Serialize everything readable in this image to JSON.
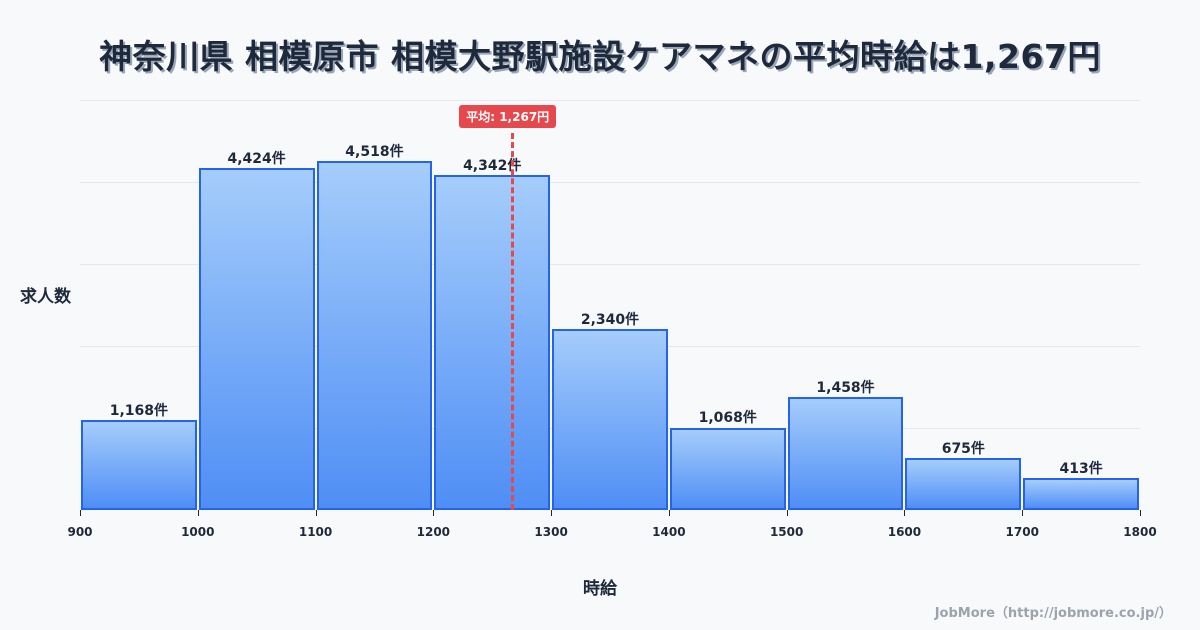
{
  "title": "神奈川県 相模原市 相模大野駅施設ケアマネの平均時給は1,267円",
  "ylabel": "求人数",
  "xlabel": "時給",
  "credit": "JobMore（http://jobmore.co.jp/）",
  "average": {
    "value": 1267,
    "label": "平均: 1,267円",
    "color": "#e5484d"
  },
  "colors": {
    "bar_border": "#2563eb",
    "bar_top": "#a5cdfb",
    "bar_bottom": "#4f8ef5",
    "background": "#f8f9fb"
  },
  "chart_data": {
    "type": "bar",
    "title": "神奈川県 相模原市 相模大野駅施設ケアマネの平均時給は1,267円",
    "xlabel": "時給",
    "ylabel": "求人数",
    "categories": [
      "900-1000",
      "1000-1100",
      "1100-1200",
      "1200-1300",
      "1300-1400",
      "1400-1500",
      "1500-1600",
      "1600-1700",
      "1700-1800"
    ],
    "bin_edges": [
      900,
      1000,
      1100,
      1200,
      1300,
      1400,
      1500,
      1600,
      1700,
      1800
    ],
    "values": [
      1168,
      4424,
      4518,
      4342,
      2340,
      1068,
      1458,
      675,
      413
    ],
    "value_labels": [
      "1,168件",
      "4,424件",
      "4,518件",
      "4,342件",
      "2,340件",
      "1,068件",
      "1,458件",
      "675件",
      "413件"
    ],
    "x_ticks": [
      "900",
      "1000",
      "1100",
      "1200",
      "1300",
      "1400",
      "1500",
      "1600",
      "1700",
      "1800"
    ],
    "xlim": [
      900,
      1800
    ],
    "ylim": [
      0,
      5307
    ],
    "grid": true,
    "annotations": [
      {
        "type": "vline",
        "x": 1267,
        "label": "平均: 1,267円"
      }
    ]
  }
}
